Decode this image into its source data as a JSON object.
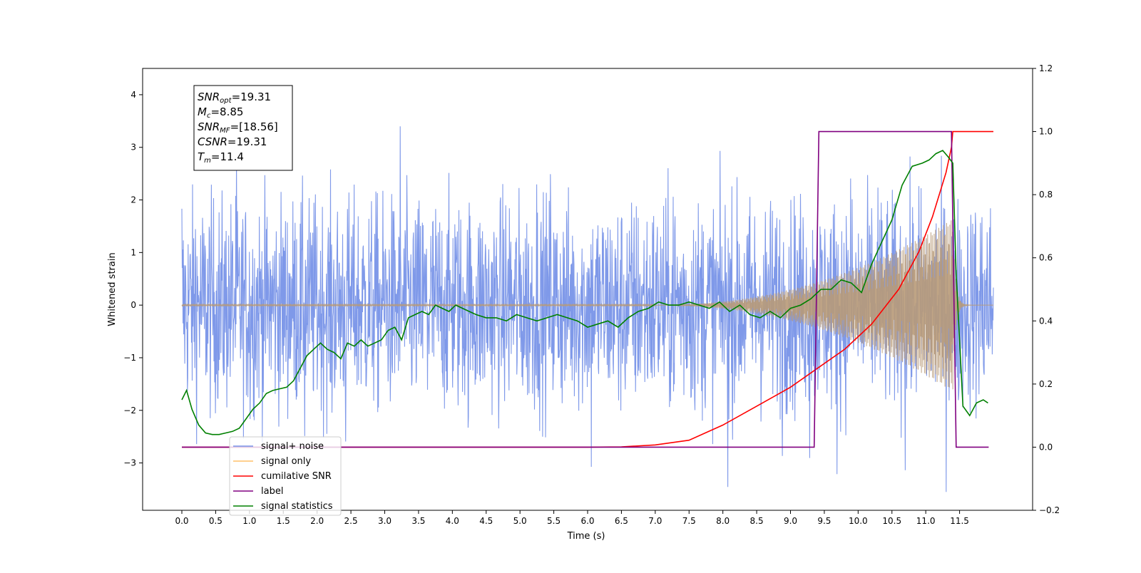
{
  "chart_data": {
    "type": "line",
    "xlabel": "Time (s)",
    "ylabel": "Whitened strain",
    "xlim": [
      -0.58,
      12.58
    ],
    "ylim": [
      -3.9,
      4.5
    ],
    "y2lim": [
      -0.2,
      1.2
    ],
    "x_ticks": [
      "0.0",
      "0.5",
      "1.0",
      "1.5",
      "2.0",
      "2.5",
      "3.0",
      "3.5",
      "4.0",
      "4.5",
      "5.0",
      "5.5",
      "6.0",
      "6.5",
      "7.0",
      "7.5",
      "8.0",
      "8.5",
      "9.0",
      "9.5",
      "10.0",
      "10.5",
      "11.0",
      "11.5"
    ],
    "y_ticks": [
      "4",
      "3",
      "2",
      "1",
      "0",
      "−1",
      "−2",
      "−3"
    ],
    "y2_ticks": [
      "1.2",
      "1.0",
      "0.8",
      "0.6",
      "0.4",
      "0.2",
      "0.0",
      "−0.2"
    ],
    "annotations": [
      {
        "name": "SNR",
        "sub": "opt",
        "value": "=19.31"
      },
      {
        "name": "M",
        "sub": "c",
        "value": "=8.85"
      },
      {
        "name": "SNR",
        "sub": "MF",
        "value": "=[18.56]"
      },
      {
        "name": "CSNR",
        "sub": "",
        "value": "=19.31"
      },
      {
        "name": "T",
        "sub": "m",
        "value": "=11.4"
      }
    ],
    "legend_position": "lower-left",
    "legend": [
      {
        "label": "signal+ noise",
        "color": "#7894e8"
      },
      {
        "label": "signal only",
        "color": "#ffc06a"
      },
      {
        "label": "cumilative SNR",
        "color": "#ff0000"
      },
      {
        "label": "label",
        "color": "#800080"
      },
      {
        "label": "signal statistics",
        "color": "#008000"
      }
    ],
    "series": [
      {
        "name": "signal+ noise",
        "axis": "left",
        "description": "whitened strain, approx zero-mean noise with std ~1, t from 0 to 12",
        "t_range": [
          0,
          12
        ],
        "amplitude_std": 1.0
      },
      {
        "name": "signal only",
        "axis": "left",
        "description": "chirp signal with amplitude growing until merger then dropping",
        "t_range": [
          0,
          12
        ],
        "merger_time": 11.4,
        "peak_amplitude": 1.6
      },
      {
        "name": "cumilative SNR",
        "axis": "right",
        "x": [
          0,
          6.0,
          6.5,
          7.0,
          7.5,
          8.0,
          8.5,
          9.0,
          9.4,
          9.8,
          10.2,
          10.6,
          10.9,
          11.1,
          11.3,
          11.38,
          11.4,
          12.0
        ],
        "y": [
          0,
          0,
          0.001,
          0.007,
          0.022,
          0.07,
          0.13,
          0.19,
          0.25,
          0.31,
          0.39,
          0.5,
          0.62,
          0.73,
          0.87,
          0.95,
          1.0,
          1.0
        ]
      },
      {
        "name": "label",
        "axis": "right",
        "x": [
          0,
          9.35,
          9.42,
          11.38,
          11.45,
          11.93
        ],
        "y": [
          0,
          0,
          1,
          1,
          0,
          0
        ]
      },
      {
        "name": "signal statistics",
        "axis": "right",
        "x": [
          0.0,
          0.07,
          0.15,
          0.25,
          0.35,
          0.45,
          0.55,
          0.65,
          0.75,
          0.85,
          0.95,
          1.05,
          1.15,
          1.25,
          1.35,
          1.45,
          1.55,
          1.65,
          1.75,
          1.85,
          1.95,
          2.05,
          2.15,
          2.25,
          2.35,
          2.45,
          2.55,
          2.65,
          2.75,
          2.85,
          2.95,
          3.05,
          3.15,
          3.25,
          3.35,
          3.45,
          3.55,
          3.65,
          3.75,
          3.85,
          3.95,
          4.05,
          4.15,
          4.25,
          4.35,
          4.5,
          4.65,
          4.8,
          4.95,
          5.1,
          5.25,
          5.4,
          5.55,
          5.7,
          5.85,
          6.0,
          6.15,
          6.3,
          6.45,
          6.6,
          6.75,
          6.9,
          7.05,
          7.2,
          7.35,
          7.5,
          7.65,
          7.8,
          7.95,
          8.1,
          8.25,
          8.4,
          8.55,
          8.7,
          8.85,
          9.0,
          9.15,
          9.3,
          9.45,
          9.6,
          9.75,
          9.9,
          10.05,
          10.2,
          10.35,
          10.5,
          10.65,
          10.8,
          10.95,
          11.05,
          11.15,
          11.25,
          11.33,
          11.4,
          11.45,
          11.55,
          11.65,
          11.75,
          11.85,
          11.92
        ],
        "y": [
          0.15,
          0.18,
          0.12,
          0.07,
          0.045,
          0.04,
          0.04,
          0.045,
          0.05,
          0.06,
          0.09,
          0.12,
          0.14,
          0.17,
          0.18,
          0.185,
          0.19,
          0.21,
          0.25,
          0.29,
          0.31,
          0.33,
          0.31,
          0.3,
          0.28,
          0.33,
          0.32,
          0.34,
          0.32,
          0.33,
          0.34,
          0.37,
          0.38,
          0.34,
          0.41,
          0.42,
          0.43,
          0.42,
          0.45,
          0.44,
          0.43,
          0.45,
          0.44,
          0.43,
          0.42,
          0.41,
          0.41,
          0.4,
          0.42,
          0.41,
          0.4,
          0.41,
          0.42,
          0.41,
          0.4,
          0.38,
          0.39,
          0.4,
          0.38,
          0.41,
          0.43,
          0.44,
          0.46,
          0.45,
          0.45,
          0.46,
          0.45,
          0.44,
          0.46,
          0.43,
          0.45,
          0.42,
          0.41,
          0.43,
          0.41,
          0.44,
          0.45,
          0.47,
          0.5,
          0.5,
          0.53,
          0.52,
          0.49,
          0.58,
          0.65,
          0.72,
          0.83,
          0.89,
          0.9,
          0.91,
          0.93,
          0.94,
          0.92,
          0.9,
          0.55,
          0.13,
          0.1,
          0.14,
          0.15,
          0.14
        ]
      }
    ]
  }
}
